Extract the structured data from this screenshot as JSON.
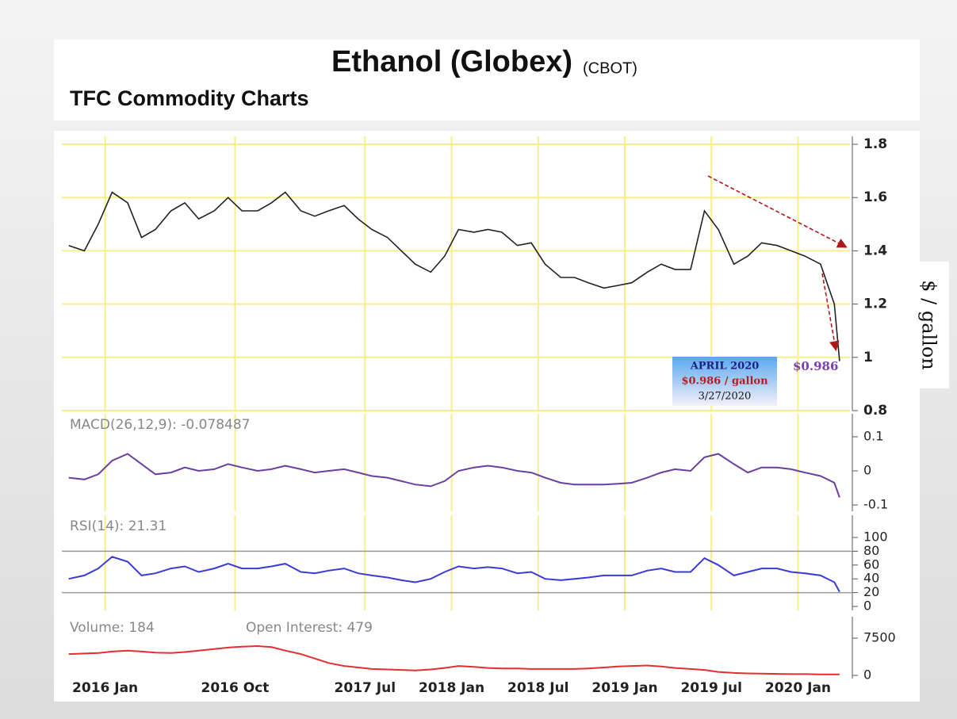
{
  "header": {
    "title": "Ethanol (Globex)",
    "exchange": "(CBOT)",
    "subtitle": "TFC Commodity Charts"
  },
  "x_axis": {
    "x": [
      2015.79,
      2015.88,
      2015.96,
      2016.04,
      2016.13,
      2016.21,
      2016.29,
      2016.38,
      2016.46,
      2016.54,
      2016.63,
      2016.71,
      2016.79,
      2016.88,
      2016.96,
      2017.04,
      2017.13,
      2017.21,
      2017.29,
      2017.38,
      2017.46,
      2017.54,
      2017.63,
      2017.71,
      2017.79,
      2017.88,
      2017.96,
      2018.04,
      2018.13,
      2018.21,
      2018.29,
      2018.38,
      2018.46,
      2018.54,
      2018.63,
      2018.71,
      2018.79,
      2018.88,
      2018.96,
      2019.04,
      2019.13,
      2019.21,
      2019.29,
      2019.38,
      2019.46,
      2019.54,
      2019.63,
      2019.71,
      2019.79,
      2019.88,
      2019.96,
      2020.04,
      2020.13,
      2020.21,
      2020.24
    ],
    "xlim": [
      2015.75,
      2020.3
    ],
    "xticks": [
      {
        "value": 2016.0,
        "label": "2016 Jan"
      },
      {
        "value": 2016.75,
        "label": "2016 Oct"
      },
      {
        "value": 2017.5,
        "label": "2017 Jul"
      },
      {
        "value": 2018.0,
        "label": "2018 Jan"
      },
      {
        "value": 2018.5,
        "label": "2018 Jul"
      },
      {
        "value": 2019.0,
        "label": "2019 Jan"
      },
      {
        "value": 2019.5,
        "label": "2019 Jul"
      },
      {
        "value": 2020.0,
        "label": "2020 Jan"
      }
    ]
  },
  "chart_data": [
    {
      "type": "line",
      "ylabel": "$ / gallon",
      "color": "#222222",
      "grid": true,
      "ylim": [
        0.8,
        1.8
      ],
      "yticks": [
        1.8,
        1.6,
        1.4,
        1.2,
        1,
        0.8
      ],
      "values": [
        1.42,
        1.4,
        1.5,
        1.62,
        1.58,
        1.45,
        1.48,
        1.55,
        1.58,
        1.52,
        1.55,
        1.6,
        1.55,
        1.55,
        1.58,
        1.62,
        1.55,
        1.53,
        1.55,
        1.57,
        1.52,
        1.48,
        1.45,
        1.4,
        1.35,
        1.32,
        1.38,
        1.48,
        1.47,
        1.48,
        1.47,
        1.42,
        1.43,
        1.35,
        1.3,
        1.3,
        1.28,
        1.26,
        1.27,
        1.28,
        1.32,
        1.35,
        1.33,
        1.33,
        1.55,
        1.48,
        1.35,
        1.38,
        1.43,
        1.42,
        1.4,
        1.38,
        1.35,
        1.2,
        0.986
      ],
      "annotations": {
        "box": [
          "APRIL 2020",
          "$0.986 / gallon",
          "3/27/2020"
        ],
        "price_label": "$0.986"
      }
    },
    {
      "type": "line",
      "label": "MACD(26,12,9): -0.078487",
      "color": "#6a3fa0",
      "grid": true,
      "ylim": [
        -0.1,
        0.1
      ],
      "yticks": [
        0.1,
        0,
        -0.1
      ],
      "values": [
        -0.02,
        -0.025,
        -0.01,
        0.03,
        0.05,
        0.02,
        -0.01,
        -0.005,
        0.01,
        0.0,
        0.005,
        0.02,
        0.01,
        0.0,
        0.005,
        0.015,
        0.005,
        -0.005,
        0.0,
        0.005,
        -0.005,
        -0.015,
        -0.02,
        -0.03,
        -0.04,
        -0.045,
        -0.03,
        0.0,
        0.01,
        0.015,
        0.01,
        0.0,
        -0.005,
        -0.02,
        -0.035,
        -0.04,
        -0.04,
        -0.04,
        -0.038,
        -0.035,
        -0.02,
        -0.005,
        0.005,
        0.0,
        0.04,
        0.05,
        0.02,
        -0.005,
        0.01,
        0.01,
        0.005,
        -0.005,
        -0.015,
        -0.035,
        -0.078
      ]
    },
    {
      "type": "line",
      "label": "RSI(14): 21.31",
      "color": "#3a3ad8",
      "grid": true,
      "ylim": [
        0,
        100
      ],
      "yticks": [
        100,
        80,
        60,
        40,
        20,
        0
      ],
      "bands": [
        80,
        20
      ],
      "values": [
        40,
        45,
        55,
        72,
        65,
        45,
        48,
        55,
        58,
        50,
        55,
        62,
        55,
        55,
        58,
        62,
        50,
        48,
        52,
        55,
        48,
        45,
        42,
        38,
        35,
        40,
        50,
        58,
        55,
        57,
        55,
        48,
        50,
        40,
        38,
        40,
        42,
        45,
        45,
        45,
        52,
        55,
        50,
        50,
        70,
        60,
        45,
        50,
        55,
        55,
        50,
        48,
        45,
        35,
        21.31
      ]
    },
    {
      "type": "line",
      "label": "Volume: 184",
      "label2": "Open Interest: 479",
      "color": "#e03030",
      "grid": false,
      "ylim": [
        0,
        7500
      ],
      "yticks": [
        7500,
        0
      ],
      "values": [
        4300,
        4400,
        4500,
        4800,
        5000,
        4800,
        4600,
        4500,
        4700,
        5000,
        5300,
        5600,
        5800,
        5900,
        5700,
        5000,
        4300,
        3400,
        2500,
        1900,
        1600,
        1300,
        1200,
        1100,
        1000,
        1200,
        1500,
        1900,
        1700,
        1500,
        1400,
        1400,
        1300,
        1300,
        1300,
        1300,
        1400,
        1600,
        1800,
        1900,
        2000,
        1800,
        1500,
        1300,
        1100,
        700,
        500,
        400,
        350,
        300,
        250,
        250,
        200,
        200,
        184
      ]
    }
  ]
}
